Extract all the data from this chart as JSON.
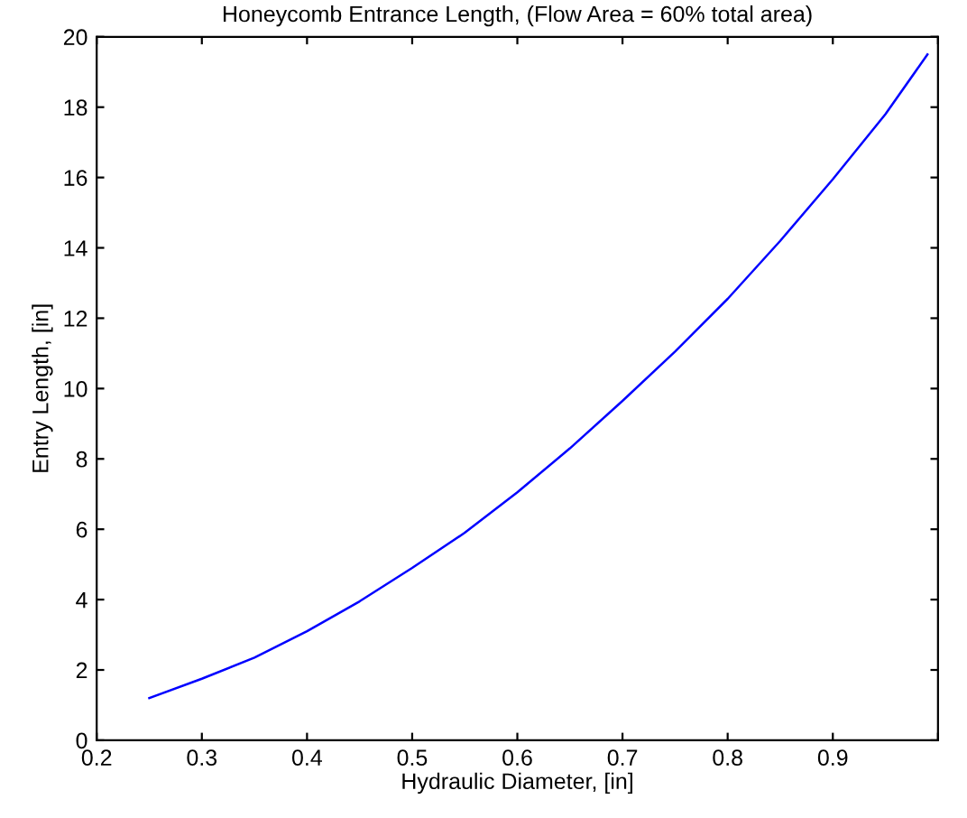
{
  "chart_data": {
    "type": "line",
    "title": "Honeycomb Entrance Length, (Flow Area = 60% total area)",
    "xlabel": "Hydraulic Diameter, [in]",
    "ylabel": "Entry Length, [in]",
    "x": [
      0.25,
      0.3,
      0.35,
      0.4,
      0.45,
      0.5,
      0.55,
      0.6,
      0.65,
      0.7,
      0.75,
      0.8,
      0.85,
      0.9,
      0.95,
      0.99
    ],
    "series": [
      {
        "color": "#0000ff",
        "values": [
          1.2,
          1.75,
          2.35,
          3.1,
          3.95,
          4.9,
          5.9,
          7.05,
          8.3,
          9.65,
          11.05,
          12.55,
          14.2,
          15.95,
          17.8,
          19.5
        ]
      }
    ],
    "xlim": [
      0.2,
      1.0
    ],
    "xticks": [
      0.2,
      0.3,
      0.4,
      0.5,
      0.6,
      0.7,
      0.8,
      0.9,
      {
        "value": 1.0,
        "label": null
      }
    ],
    "ylim": [
      0,
      20
    ],
    "yticks": [
      0,
      2,
      4,
      6,
      8,
      10,
      12,
      14,
      16,
      18,
      20
    ],
    "grid": false
  }
}
